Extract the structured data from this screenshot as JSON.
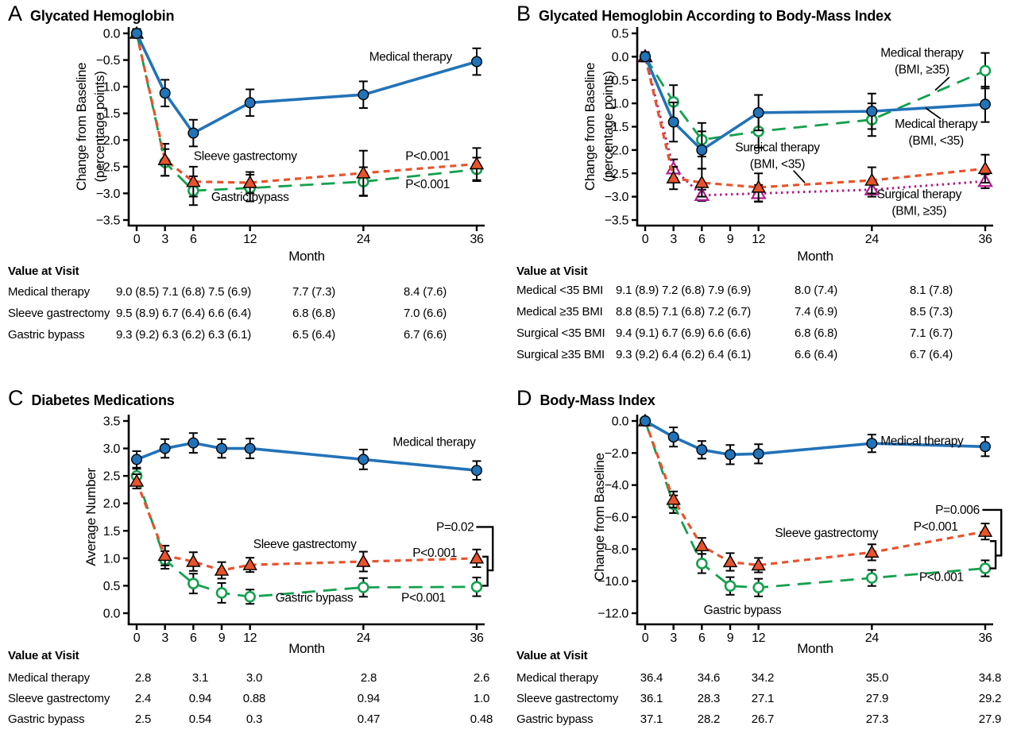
{
  "figure": {
    "background": "#ffffff"
  },
  "colors": {
    "blue": "#2273B8",
    "orange": "#E8532C",
    "green": "#14A04E",
    "purple": "#AE1F8C",
    "black": "#000000"
  },
  "chart_data": [
    {
      "type": "line",
      "letter": "A",
      "title": "Glycated Hemoglobin",
      "ylabel_lines": [
        "Change from Baseline",
        "(percentage points)"
      ],
      "xlabel": "Month",
      "ylim": [
        0.0,
        -3.5
      ],
      "xlim": [
        0,
        36
      ],
      "yticks": [
        0.0,
        -0.5,
        -1.0,
        -1.5,
        -2.0,
        -2.5,
        -3.0,
        -3.5
      ],
      "ytick_labels": [
        "0.0",
        "−0.5",
        "−1.0",
        "−1.5",
        "−2.0",
        "−2.5",
        "−3.0",
        "−3.5"
      ],
      "xticks": [
        0,
        3,
        6,
        12,
        24,
        36
      ],
      "xtick_labels": [
        "0",
        "3",
        "6",
        "12",
        "24",
        "36"
      ],
      "series": [
        {
          "name": "Gastric bypass",
          "color": "green",
          "style": "longdash",
          "marker": "circle-open",
          "x": [
            0,
            3,
            6,
            12,
            24,
            36
          ],
          "y": [
            0,
            -2.42,
            -2.95,
            -2.9,
            -2.78,
            -2.55
          ],
          "err": [
            0.08,
            0.25,
            0.27,
            0.25,
            0.27,
            0.22
          ]
        },
        {
          "name": "Sleeve gastrectomy",
          "color": "orange",
          "style": "shortdash",
          "marker": "triangle-filled",
          "x": [
            0,
            3,
            6,
            12,
            24,
            36
          ],
          "y": [
            0,
            -2.37,
            -2.78,
            -2.8,
            -2.62,
            -2.45
          ],
          "err": [
            0.08,
            0.3,
            0.28,
            0.2,
            0.42,
            0.3
          ]
        },
        {
          "name": "Medical therapy",
          "color": "blue",
          "style": "solid",
          "marker": "circle-filled",
          "x": [
            0,
            3,
            6,
            12,
            24,
            36
          ],
          "y": [
            0,
            -1.12,
            -1.87,
            -1.3,
            -1.15,
            -0.53
          ],
          "err": [
            0.08,
            0.25,
            0.25,
            0.25,
            0.25,
            0.25
          ]
        }
      ],
      "annotations": [
        {
          "lines": [
            "Medical therapy"
          ],
          "x": 29.0,
          "y": -0.44,
          "anchor": "middle"
        },
        {
          "lines": [
            "Sleeve gastrectomy"
          ],
          "x": 11.5,
          "y": -2.3,
          "anchor": "middle"
        },
        {
          "lines": [
            "Gastric bypass"
          ],
          "x": 12.0,
          "y": -3.07,
          "anchor": "middle"
        },
        {
          "lines": [
            "P<0.001"
          ],
          "x": 30.8,
          "y": -2.3,
          "anchor": "middle"
        },
        {
          "lines": [
            "P<0.001"
          ],
          "x": 30.8,
          "y": -2.83,
          "anchor": "middle"
        }
      ],
      "leaders": [],
      "brackets": [],
      "table": {
        "header": "Value at Visit",
        "rows": [
          {
            "label": "Medical therapy",
            "values": [
              "9.0 (8.5)",
              "7.1 (6.8)",
              "7.5 (6.9)",
              "7.7 (7.3)",
              "8.4 (7.6)"
            ]
          },
          {
            "label": "Sleeve gastrectomy",
            "values": [
              "9.5 (8.9)",
              "6.7 (6.4)",
              "6.6 (6.4)",
              "6.8 (6.8)",
              "7.0 (6.6)"
            ]
          },
          {
            "label": "Gastric bypass",
            "values": [
              "9.3 (9.2)",
              "6.3 (6.2)",
              "6.3 (6.1)",
              "6.5 (6.4)",
              "6.7 (6.6)"
            ]
          }
        ]
      }
    },
    {
      "type": "line",
      "letter": "B",
      "title": "Glycated Hemoglobin According to Body-Mass Index",
      "ylabel_lines": [
        "Change from Baseline",
        "(percentage points)"
      ],
      "xlabel": "Month",
      "ylim": [
        0.5,
        -3.5
      ],
      "xlim": [
        0,
        36
      ],
      "yticks": [
        0.5,
        0.0,
        -0.5,
        -1.0,
        -1.5,
        -2.0,
        -2.5,
        -3.0,
        -3.5
      ],
      "ytick_labels": [
        "0.5",
        "0.0",
        "−0.5",
        "−1.0",
        "−1.5",
        "−2.0",
        "−2.5",
        "−3.0",
        "−3.5"
      ],
      "xticks": [
        0,
        3,
        6,
        9,
        12,
        24,
        36
      ],
      "xtick_labels": [
        "0",
        "3",
        "6",
        "9",
        "12",
        "24",
        "36"
      ],
      "series": [
        {
          "name": "Medical therapy (BMI, ≥35)",
          "color": "green",
          "style": "longdash",
          "marker": "circle-open",
          "x": [
            0,
            3,
            6,
            12,
            24,
            36
          ],
          "y": [
            0,
            -0.97,
            -1.78,
            -1.6,
            -1.35,
            -0.3
          ],
          "err": [
            0.1,
            0.36,
            0.36,
            0.35,
            0.35,
            0.38
          ]
        },
        {
          "name": "Surgical therapy (BMI, ≥35)",
          "color": "purple",
          "style": "dotted",
          "marker": "triangle-open",
          "x": [
            0,
            3,
            6,
            12,
            24,
            36
          ],
          "y": [
            0,
            -2.4,
            -2.97,
            -2.93,
            -2.85,
            -2.67
          ],
          "err": [
            0.08,
            0.2,
            0.12,
            0.18,
            0.15,
            0.15
          ]
        },
        {
          "name": "Surgical therapy (BMI, <35)",
          "color": "orange",
          "style": "shortdash",
          "marker": "triangle-filled",
          "x": [
            0,
            3,
            6,
            12,
            24,
            36
          ],
          "y": [
            0,
            -2.6,
            -2.7,
            -2.8,
            -2.65,
            -2.4
          ],
          "err": [
            0.1,
            0.24,
            0.3,
            0.3,
            0.28,
            0.3
          ]
        },
        {
          "name": "Medical therapy (BMI, <35)",
          "color": "blue",
          "style": "solid",
          "marker": "circle-filled",
          "x": [
            0,
            3,
            6,
            12,
            24,
            36
          ],
          "y": [
            0,
            -1.4,
            -2.0,
            -1.2,
            -1.17,
            -1.02
          ],
          "err": [
            0.1,
            0.42,
            0.4,
            0.38,
            0.38,
            0.38
          ]
        }
      ],
      "annotations": [
        {
          "lines": [
            "Medical therapy",
            "(BMI, ≥35)"
          ],
          "x": 29.3,
          "y": 0.08,
          "anchor": "middle"
        },
        {
          "lines": [
            "Medical therapy",
            "(BMI, <35)"
          ],
          "x": 30.8,
          "y": -1.44,
          "anchor": "middle"
        },
        {
          "lines": [
            "Surgical therapy",
            "(BMI, <35)"
          ],
          "x": 14.0,
          "y": -1.94,
          "anchor": "middle"
        },
        {
          "lines": [
            "Surgical therapy",
            "(BMI, ≥35)"
          ],
          "x": 29.0,
          "y": -2.95,
          "anchor": "middle"
        }
      ],
      "leaders": [
        {
          "from": [
            32.2,
            -0.44
          ],
          "to": [
            30.7,
            -0.72
          ]
        },
        {
          "from": [
            31.3,
            -1.33
          ],
          "to": [
            29.7,
            -1.1
          ]
        },
        {
          "from": [
            15.7,
            -2.44
          ],
          "to": [
            16.9,
            -2.7
          ]
        }
      ],
      "brackets": [],
      "table": {
        "header": "Value at Visit",
        "rows": [
          {
            "label": "Medical <35 BMI",
            "values": [
              "9.1 (8.9)",
              "7.2 (6.8)",
              "7.9 (6.9)",
              "8.0 (7.4)",
              "8.1 (7.8)"
            ]
          },
          {
            "label": "Medical ≥35 BMI",
            "values": [
              "8.8 (8.5)",
              "7.1 (6.8)",
              "7.2 (6.7)",
              "7.4 (6.9)",
              "8.5 (7.3)"
            ]
          },
          {
            "label": "Surgical <35 BMI",
            "values": [
              "9.4 (9.1)",
              "6.7 (6.9)",
              "6.6 (6.6)",
              "6.8 (6.8)",
              "7.1 (6.7)"
            ]
          },
          {
            "label": "Surgical ≥35 BMI",
            "values": [
              "9.3 (9.2)",
              "6.4 (6.2)",
              "6.4 (6.1)",
              "6.6 (6.4)",
              "6.7 (6.4)"
            ]
          }
        ]
      }
    },
    {
      "type": "line",
      "letter": "C",
      "title": "Diabetes Medications",
      "ylabel_lines": [
        "Average Number"
      ],
      "xlabel": "Month",
      "ylim": [
        3.5,
        0.0
      ],
      "xlim": [
        0,
        36
      ],
      "yticks": [
        3.5,
        3.0,
        2.5,
        2.0,
        1.5,
        1.0,
        0.5,
        0.0
      ],
      "ytick_labels": [
        "3.5",
        "3.0",
        "2.5",
        "2.0",
        "1.5",
        "1.0",
        "0.5",
        "0.0"
      ],
      "xticks": [
        0,
        3,
        6,
        9,
        12,
        24,
        36
      ],
      "xtick_labels": [
        "0",
        "3",
        "6",
        "9",
        "12",
        "24",
        "36"
      ],
      "series": [
        {
          "name": "Gastric bypass",
          "color": "green",
          "style": "longdash",
          "marker": "circle-open",
          "x": [
            0,
            3,
            6,
            9,
            12,
            24,
            36
          ],
          "y": [
            2.5,
            0.97,
            0.54,
            0.37,
            0.3,
            0.47,
            0.48
          ],
          "err": [
            0.13,
            0.16,
            0.18,
            0.18,
            0.13,
            0.17,
            0.17
          ]
        },
        {
          "name": "Sleeve gastrectomy",
          "color": "orange",
          "style": "shortdash",
          "marker": "triangle-filled",
          "x": [
            0,
            3,
            6,
            9,
            12,
            24,
            36
          ],
          "y": [
            2.4,
            1.05,
            0.94,
            0.78,
            0.88,
            0.94,
            1.0
          ],
          "err": [
            0.13,
            0.18,
            0.17,
            0.15,
            0.13,
            0.18,
            0.16
          ]
        },
        {
          "name": "Medical therapy",
          "color": "blue",
          "style": "solid",
          "marker": "circle-filled",
          "x": [
            0,
            3,
            6,
            9,
            12,
            24,
            36
          ],
          "y": [
            2.8,
            3.0,
            3.1,
            3.0,
            3.0,
            2.8,
            2.6
          ],
          "err": [
            0.15,
            0.17,
            0.18,
            0.17,
            0.18,
            0.18,
            0.17
          ]
        }
      ],
      "annotations": [
        {
          "lines": [
            "Medical therapy"
          ],
          "x": 31.5,
          "y": 3.12,
          "anchor": "middle"
        },
        {
          "lines": [
            "Sleeve gastrectomy"
          ],
          "x": 17.8,
          "y": 1.26,
          "anchor": "middle"
        },
        {
          "lines": [
            "Gastric bypass"
          ],
          "x": 18.8,
          "y": 0.28,
          "anchor": "middle"
        },
        {
          "lines": [
            "P=0.02"
          ],
          "x": 35.7,
          "y": 1.57,
          "anchor": "end"
        },
        {
          "lines": [
            "P<0.001"
          ],
          "x": 33.9,
          "y": 1.1,
          "anchor": "end"
        },
        {
          "lines": [
            "P<0.001"
          ],
          "x": 32.7,
          "y": 0.28,
          "anchor": "end"
        }
      ],
      "leaders": [],
      "brackets": [
        [
          [
            35.95,
            1.57
          ],
          [
            37.7,
            1.57
          ],
          [
            37.7,
            0.78
          ],
          [
            37.15,
            0.78
          ]
        ],
        [
          [
            36.6,
            1.03
          ],
          [
            37.15,
            1.03
          ],
          [
            37.15,
            0.5
          ],
          [
            36.6,
            0.5
          ]
        ]
      ],
      "table": {
        "header": "Value at Visit",
        "rows": [
          {
            "label": "Medical therapy",
            "values": [
              "2.8",
              "3.1",
              "3.0",
              "2.8",
              "2.6"
            ]
          },
          {
            "label": "Sleeve gastrectomy",
            "values": [
              "2.4",
              "0.94",
              "0.88",
              "0.94",
              "1.0"
            ]
          },
          {
            "label": "Gastric bypass",
            "values": [
              "2.5",
              "0.54",
              "0.3",
              "0.47",
              "0.48"
            ]
          }
        ]
      }
    },
    {
      "type": "line",
      "letter": "D",
      "title": "Body-Mass Index",
      "ylabel_lines": [
        "Change from Baseline"
      ],
      "xlabel": "Month",
      "ylim": [
        0.0,
        -12.0
      ],
      "xlim": [
        0,
        36
      ],
      "yticks": [
        0.0,
        -2.0,
        -4.0,
        -6.0,
        -8.0,
        -10.0,
        -12.0
      ],
      "ytick_labels": [
        "0.0",
        "−2.0",
        "−4.0",
        "−6.0",
        "−8.0",
        "−10.0",
        "−12.0"
      ],
      "xticks": [
        0,
        3,
        6,
        9,
        12,
        24,
        36
      ],
      "xtick_labels": [
        "0",
        "3",
        "6",
        "9",
        "12",
        "24",
        "36"
      ],
      "series": [
        {
          "name": "Gastric bypass",
          "color": "green",
          "style": "longdash",
          "marker": "circle-open",
          "x": [
            0,
            3,
            6,
            9,
            12,
            24,
            36
          ],
          "y": [
            0,
            -5.2,
            -8.9,
            -10.3,
            -10.4,
            -9.8,
            -9.2
          ],
          "err": [
            0,
            0.55,
            0.6,
            0.55,
            0.55,
            0.5,
            0.5
          ]
        },
        {
          "name": "Sleeve gastrectomy",
          "color": "orange",
          "style": "shortdash",
          "marker": "triangle-filled",
          "x": [
            0,
            3,
            6,
            9,
            12,
            24,
            36
          ],
          "y": [
            0,
            -4.9,
            -7.8,
            -8.8,
            -9.0,
            -8.2,
            -6.9
          ],
          "err": [
            0,
            0.5,
            0.5,
            0.55,
            0.45,
            0.5,
            0.5
          ]
        },
        {
          "name": "Medical therapy",
          "color": "blue",
          "style": "solid",
          "marker": "circle-filled",
          "x": [
            0,
            3,
            6,
            9,
            12,
            24,
            36
          ],
          "y": [
            0,
            -1.0,
            -1.8,
            -2.1,
            -2.05,
            -1.4,
            -1.6
          ],
          "err": [
            0,
            0.6,
            0.55,
            0.6,
            0.6,
            0.55,
            0.6
          ]
        }
      ],
      "annotations": [
        {
          "lines": [
            "Medical therapy"
          ],
          "x": 29.3,
          "y": -1.25,
          "anchor": "middle"
        },
        {
          "lines": [
            "Sleeve gastrectomy"
          ],
          "x": 19.2,
          "y": -7.0,
          "anchor": "middle"
        },
        {
          "lines": [
            "Gastric bypass"
          ],
          "x": 10.3,
          "y": -11.8,
          "anchor": "middle"
        },
        {
          "lines": [
            "P=0.006"
          ],
          "x": 35.4,
          "y": -5.55,
          "anchor": "end"
        },
        {
          "lines": [
            "P<0.001"
          ],
          "x": 33.1,
          "y": -6.6,
          "anchor": "end"
        },
        {
          "lines": [
            "P<0.001"
          ],
          "x": 33.7,
          "y": -9.75,
          "anchor": "end"
        }
      ],
      "leaders": [],
      "brackets": [
        [
          [
            35.7,
            -5.55
          ],
          [
            37.7,
            -5.55
          ],
          [
            37.7,
            -8.4
          ],
          [
            37.1,
            -8.4
          ]
        ],
        [
          [
            36.5,
            -7.5
          ],
          [
            37.1,
            -7.5
          ],
          [
            37.1,
            -9.2
          ],
          [
            36.5,
            -9.2
          ]
        ]
      ],
      "table": {
        "header": "Value at Visit",
        "rows": [
          {
            "label": "Medical therapy",
            "values": [
              "36.4",
              "34.6",
              "34.2",
              "35.0",
              "34.8"
            ]
          },
          {
            "label": "Sleeve gastrectomy",
            "values": [
              "36.1",
              "28.3",
              "27.1",
              "27.9",
              "29.2"
            ]
          },
          {
            "label": "Gastric bypass",
            "values": [
              "37.1",
              "28.2",
              "26.7",
              "27.3",
              "27.9"
            ]
          }
        ]
      }
    }
  ]
}
